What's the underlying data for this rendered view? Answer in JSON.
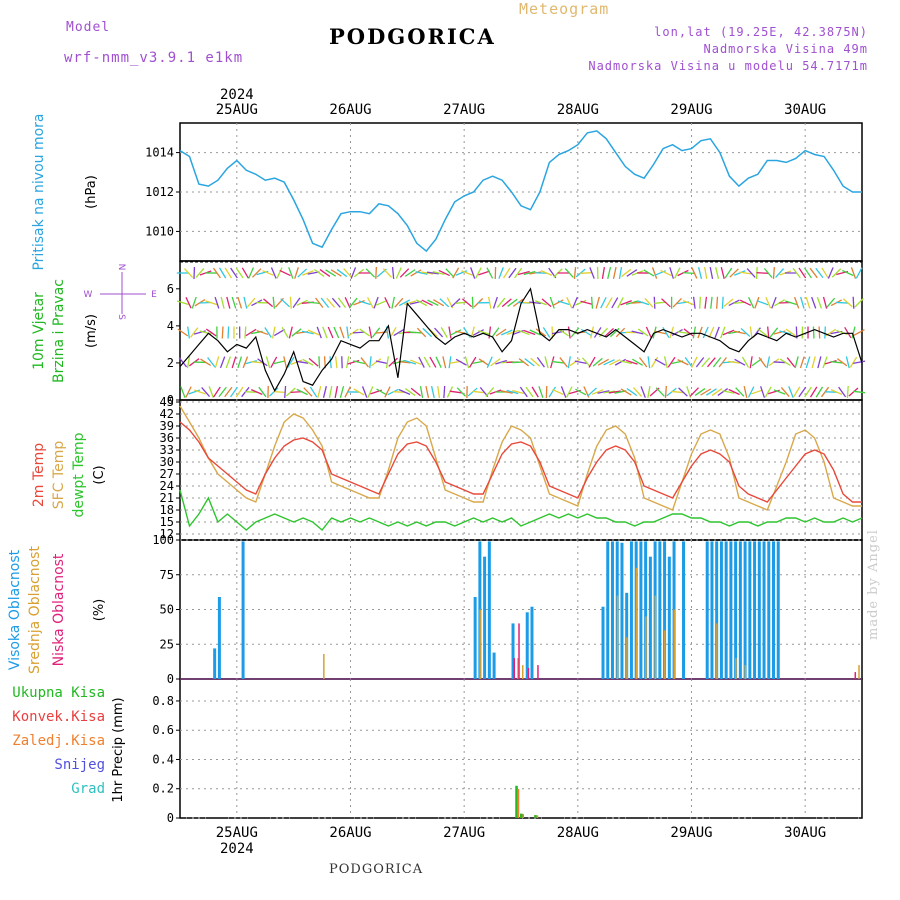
{
  "header": {
    "model_label": "Model",
    "model_name": "wrf-nmm_v3.9.1  e1km",
    "title": "PODGORICA",
    "meteogram": "Meteogram",
    "lonlat": "lon,lat (19.25E, 42.3875N)",
    "altitude": "Nadmorska Visina 49m",
    "model_altitude": "Nadmorska Visina u modelu 54.7171m",
    "footer": "PODGORICA",
    "credit": "made by Angel"
  },
  "colors": {
    "pressure": "#2aa5e0",
    "temp2m": "#e8483a",
    "sfc": "#d8a84a",
    "dew": "#2ec42e",
    "wind": "#000000",
    "high_cloud": "#1c9ce6",
    "mid_cloud": "#d8a030",
    "low_cloud": "#e0207a",
    "magenta_text": "#a050d0"
  },
  "axes": {
    "year": "2024",
    "days": [
      "25AUG",
      "26AUG",
      "27AUG",
      "28AUG",
      "29AUG",
      "30AUG"
    ]
  },
  "panels": {
    "pressure": {
      "label": "Pritisak na nivou mora",
      "unit": "(hPa)",
      "ticks": [
        "1010",
        "1012",
        "1014"
      ]
    },
    "wind": {
      "label1": "10m Vjetar",
      "label2": "Brzina i Pravac",
      "unit": "(m/s)",
      "compass_n": "N",
      "compass_e": "E",
      "compass_w": "W",
      "compass_s": "S",
      "ticks": [
        "0",
        "2",
        "4",
        "6"
      ]
    },
    "temp": {
      "label1": "2m Temp",
      "label2": "SFC Temp",
      "label3": "dewpt Temp",
      "unit": "(C)",
      "ticks": [
        "12",
        "15",
        "18",
        "21",
        "24",
        "27",
        "30",
        "33",
        "36",
        "39",
        "42",
        "45"
      ]
    },
    "cloud": {
      "label1": "Visoka Oblacnost",
      "label2": "Srednja Oblacnost",
      "label3": "Niska Oblacnost",
      "unit": "(%)",
      "ticks": [
        "0",
        "25",
        "50",
        "75",
        "100"
      ]
    },
    "precip": {
      "labels": [
        "Ukupna Kisa",
        "Konvek.Kisa",
        "Zaledj.Kisa",
        "Snijeg",
        "Grad"
      ],
      "label_colors": [
        "#22b822",
        "#e84040",
        "#f08030",
        "#5050e0",
        "#30c0c0"
      ],
      "unit": "1hr Precip (mm)",
      "ticks": [
        "0",
        "0.2",
        "0.4",
        "0.6",
        "0.8"
      ]
    }
  },
  "chart_data": {
    "type": "line",
    "x_hours": "hours since 2024-08-24 12:00 UTC",
    "pressure": {
      "x": [
        0,
        2,
        4,
        6,
        8,
        10,
        12,
        14,
        16,
        18,
        20,
        22,
        24,
        26,
        28,
        30,
        32,
        34,
        36,
        38,
        40,
        42,
        44,
        46,
        48,
        50,
        52,
        54,
        56,
        58,
        60,
        62,
        64,
        66,
        68,
        70,
        72,
        74,
        76,
        78,
        80,
        82,
        84,
        86,
        88,
        90,
        92,
        94,
        96,
        98,
        100,
        102,
        104,
        106,
        108,
        110,
        112,
        114,
        116,
        118,
        120,
        122,
        124,
        126,
        128,
        130,
        132,
        134,
        136,
        138,
        140,
        142,
        144
      ],
      "y": [
        1014.1,
        1013.8,
        1012.4,
        1012.3,
        1012.6,
        1013.2,
        1013.6,
        1013.1,
        1012.9,
        1012.6,
        1012.7,
        1012.5,
        1011.6,
        1010.6,
        1009.4,
        1009.2,
        1010.1,
        1010.9,
        1011.0,
        1011.0,
        1010.9,
        1011.4,
        1011.3,
        1010.9,
        1010.3,
        1009.4,
        1009.0,
        1009.6,
        1010.6,
        1011.5,
        1011.8,
        1012.0,
        1012.6,
        1012.8,
        1012.6,
        1012.0,
        1011.3,
        1011.1,
        1012.0,
        1013.5,
        1013.9,
        1014.1,
        1014.4,
        1015.0,
        1015.1,
        1014.7,
        1014.0,
        1013.3,
        1012.9,
        1012.7,
        1013.4,
        1014.2,
        1014.4,
        1014.1,
        1014.2,
        1014.6,
        1014.7,
        1014.0,
        1012.8,
        1012.3,
        1012.7,
        1012.9,
        1013.6,
        1013.6,
        1013.5,
        1013.7,
        1014.1,
        1013.9,
        1013.8,
        1013.1,
        1012.3,
        1012.0,
        1012.0
      ],
      "ylim": [
        1008.5,
        1015.5
      ]
    },
    "wind_speed": {
      "x": [
        0,
        2,
        4,
        6,
        8,
        10,
        12,
        14,
        16,
        18,
        20,
        22,
        24,
        26,
        28,
        30,
        32,
        34,
        36,
        38,
        40,
        42,
        44,
        46,
        48,
        50,
        52,
        54,
        56,
        58,
        60,
        62,
        64,
        66,
        68,
        70,
        72,
        74,
        76,
        78,
        80,
        82,
        84,
        86,
        88,
        90,
        92,
        94,
        96,
        98,
        100,
        102,
        104,
        106,
        108,
        110,
        112,
        114,
        116,
        118,
        120,
        122,
        124,
        126,
        128,
        130,
        132,
        134,
        136,
        138,
        140,
        142,
        144
      ],
      "y": [
        1.8,
        2.4,
        3.0,
        3.6,
        3.2,
        2.6,
        3.0,
        2.8,
        3.4,
        1.6,
        0.5,
        1.4,
        2.6,
        1.0,
        0.8,
        1.6,
        2.2,
        3.2,
        3.0,
        2.8,
        3.2,
        3.2,
        4.0,
        1.2,
        5.2,
        4.6,
        4.0,
        3.4,
        3.0,
        3.4,
        3.6,
        3.4,
        3.6,
        3.4,
        2.6,
        3.2,
        5.2,
        6.0,
        3.6,
        3.2,
        3.8,
        3.8,
        3.6,
        3.8,
        3.6,
        3.4,
        3.8,
        3.4,
        3.0,
        2.6,
        3.6,
        3.8,
        3.6,
        3.4,
        3.6,
        3.6,
        3.4,
        3.2,
        2.8,
        2.6,
        3.2,
        3.6,
        3.4,
        3.2,
        3.6,
        3.4,
        3.6,
        3.8,
        3.6,
        3.4,
        3.6,
        3.6,
        2.0
      ],
      "ylim": [
        0,
        7.5
      ]
    },
    "temp_2m": {
      "x": [
        0,
        2,
        4,
        6,
        8,
        10,
        12,
        14,
        16,
        18,
        20,
        22,
        24,
        26,
        28,
        30,
        32,
        34,
        36,
        38,
        40,
        42,
        44,
        46,
        48,
        50,
        52,
        54,
        56,
        58,
        60,
        62,
        64,
        66,
        68,
        70,
        72,
        74,
        76,
        78,
        80,
        82,
        84,
        86,
        88,
        90,
        92,
        94,
        96,
        98,
        100,
        102,
        104,
        106,
        108,
        110,
        112,
        114,
        116,
        118,
        120,
        122,
        124,
        126,
        128,
        130,
        132,
        134,
        136,
        138,
        140,
        142,
        144
      ],
      "y": [
        40,
        38,
        35,
        31,
        29,
        27,
        25,
        23,
        22,
        27,
        31,
        34,
        35.5,
        36,
        35,
        33,
        27,
        26,
        25,
        24,
        23,
        22,
        27,
        32,
        34.5,
        35,
        34,
        30,
        25,
        24,
        23,
        22,
        22,
        27,
        32,
        34.5,
        35,
        34,
        30,
        24,
        23,
        22,
        21,
        26,
        30,
        33,
        34,
        33,
        30,
        24,
        23,
        22,
        21,
        25,
        29,
        32,
        33,
        32,
        30,
        24,
        22,
        21,
        20,
        23,
        26,
        29,
        32,
        33,
        32,
        28,
        22,
        20,
        20
      ],
      "ylim": [
        10.5,
        45.5
      ]
    },
    "temp_sfc": {
      "x": [
        0,
        2,
        4,
        6,
        8,
        10,
        12,
        14,
        16,
        18,
        20,
        22,
        24,
        26,
        28,
        30,
        32,
        34,
        36,
        38,
        40,
        42,
        44,
        46,
        48,
        50,
        52,
        54,
        56,
        58,
        60,
        62,
        64,
        66,
        68,
        70,
        72,
        74,
        76,
        78,
        80,
        82,
        84,
        86,
        88,
        90,
        92,
        94,
        96,
        98,
        100,
        102,
        104,
        106,
        108,
        110,
        112,
        114,
        116,
        118,
        120,
        122,
        124,
        126,
        128,
        130,
        132,
        134,
        136,
        138,
        140,
        142,
        144
      ],
      "y": [
        44,
        40,
        36,
        31,
        27,
        25,
        23,
        21,
        20,
        27,
        34,
        40,
        42,
        41,
        38,
        34,
        25,
        24,
        23,
        22,
        21,
        21,
        28,
        36,
        40,
        41,
        39,
        31,
        23,
        22,
        21,
        20,
        20,
        28,
        35,
        39,
        38,
        36,
        29,
        22,
        21,
        20,
        19,
        27,
        34,
        38,
        39,
        37,
        31,
        21,
        20,
        19,
        18,
        25,
        32,
        37,
        38,
        37,
        31,
        21,
        20,
        19,
        18,
        24,
        30,
        37,
        38,
        36,
        30,
        21,
        20,
        19,
        19
      ],
      "ylim": [
        10.5,
        45.5
      ]
    },
    "temp_dew": {
      "x": [
        0,
        2,
        4,
        6,
        8,
        10,
        12,
        14,
        16,
        18,
        20,
        22,
        24,
        26,
        28,
        30,
        32,
        34,
        36,
        38,
        40,
        42,
        44,
        46,
        48,
        50,
        52,
        54,
        56,
        58,
        60,
        62,
        64,
        66,
        68,
        70,
        72,
        74,
        76,
        78,
        80,
        82,
        84,
        86,
        88,
        90,
        92,
        94,
        96,
        98,
        100,
        102,
        104,
        106,
        108,
        110,
        112,
        114,
        116,
        118,
        120,
        122,
        124,
        126,
        128,
        130,
        132,
        134,
        136,
        138,
        140,
        142,
        144
      ],
      "y": [
        23,
        14,
        17,
        21,
        15,
        17,
        15,
        13,
        15,
        16,
        17,
        16,
        15,
        16,
        15,
        13,
        16,
        15,
        16,
        15,
        16,
        15,
        14,
        15,
        14,
        15,
        14,
        15,
        15,
        14,
        15,
        16,
        15,
        16,
        15,
        16,
        14,
        15,
        16,
        17,
        16,
        17,
        16,
        17,
        16,
        16,
        15,
        15,
        14,
        15,
        15,
        16,
        17,
        17,
        16,
        16,
        15,
        15,
        14,
        15,
        15,
        14,
        15,
        15,
        16,
        16,
        15,
        16,
        15,
        15,
        16,
        15,
        16
      ],
      "ylim": [
        10.5,
        45.5
      ]
    },
    "cloud_high_bars": [
      [
        7,
        22
      ],
      [
        8,
        59
      ],
      [
        13,
        99
      ],
      [
        62,
        59
      ],
      [
        63,
        99
      ],
      [
        64,
        88
      ],
      [
        65,
        99
      ],
      [
        66,
        19
      ],
      [
        70,
        40
      ],
      [
        73,
        48
      ],
      [
        74,
        52
      ],
      [
        89,
        52
      ],
      [
        90,
        99
      ],
      [
        91,
        99
      ],
      [
        92,
        99
      ],
      [
        93,
        98
      ],
      [
        94,
        62
      ],
      [
        95,
        99
      ],
      [
        96,
        99
      ],
      [
        97,
        99
      ],
      [
        98,
        99
      ],
      [
        99,
        88
      ],
      [
        100,
        99
      ],
      [
        101,
        99
      ],
      [
        102,
        99
      ],
      [
        103,
        88
      ],
      [
        104,
        99
      ],
      [
        106,
        99
      ],
      [
        111,
        99
      ],
      [
        112,
        99
      ],
      [
        113,
        99
      ],
      [
        114,
        99
      ],
      [
        115,
        99
      ],
      [
        116,
        99
      ],
      [
        117,
        99
      ],
      [
        118,
        99
      ],
      [
        119,
        99
      ],
      [
        120,
        99
      ],
      [
        121,
        99
      ],
      [
        122,
        99
      ],
      [
        123,
        99
      ],
      [
        124,
        99
      ],
      [
        125,
        99
      ],
      [
        126,
        99
      ]
    ],
    "cloud_mid_bars": [
      [
        30,
        18
      ],
      [
        63,
        50
      ],
      [
        71,
        15
      ],
      [
        72,
        10
      ],
      [
        92,
        60
      ],
      [
        94,
        30
      ],
      [
        96,
        80
      ],
      [
        98,
        45
      ],
      [
        100,
        60
      ],
      [
        102,
        35
      ],
      [
        104,
        50
      ],
      [
        113,
        40
      ],
      [
        117,
        15
      ],
      [
        119,
        10
      ],
      [
        143,
        10
      ]
    ],
    "cloud_low_bars": [
      [
        70,
        15
      ],
      [
        71,
        40
      ],
      [
        73,
        8
      ],
      [
        75,
        10
      ],
      [
        142,
        5
      ]
    ],
    "cloud_ylim": [
      0,
      100
    ],
    "precip_bars": [
      [
        71,
        0.22
      ],
      [
        72,
        0.03
      ],
      [
        75,
        0.02
      ]
    ],
    "precip_ylim": [
      0,
      0.95
    ]
  }
}
